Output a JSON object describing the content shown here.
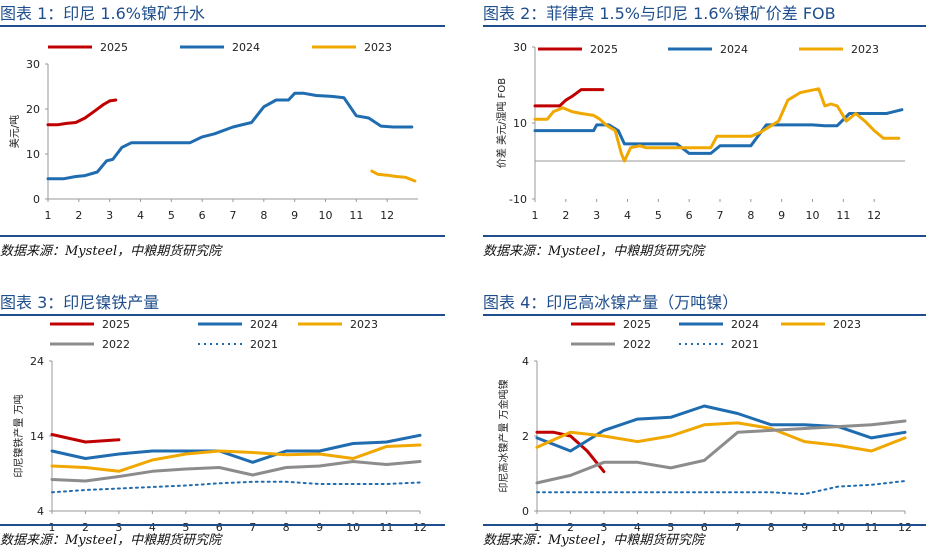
{
  "source_text": "数据来源：Mysteel，中粮期货研究院",
  "panels": [
    {
      "title": "图表 1：印尼 1.6%镍矿升水",
      "source": "数据来源：Mysteel，中粮期货研究院",
      "chart_data": {
        "type": "line",
        "ylabel": "美元/吨",
        "xlabel": "",
        "xlim": [
          1,
          13
        ],
        "ylim": [
          0,
          30
        ],
        "yticks": [
          0,
          10,
          20,
          30
        ],
        "xticks": [
          1,
          2,
          3,
          4,
          5,
          6,
          7,
          8,
          9,
          10,
          11,
          12
        ],
        "legend_position": "top",
        "series": [
          {
            "name": "2025",
            "color": "#c00000",
            "x": [
              1,
              1.3,
              1.6,
              1.9,
              2.2,
              2.5,
              2.8,
              3.0,
              3.2
            ],
            "y": [
              16.5,
              16.5,
              16.8,
              17,
              18,
              19.5,
              21,
              21.8,
              22
            ]
          },
          {
            "name": "2024",
            "color": "#1f6cb0",
            "x": [
              1,
              1.5,
              1.9,
              2.2,
              2.6,
              2.9,
              3.1,
              3.4,
              3.7,
              4.0,
              4.4,
              5.0,
              5.6,
              6.0,
              6.4,
              7.0,
              7.6,
              8.0,
              8.4,
              8.8,
              9.0,
              9.3,
              9.7,
              10.2,
              10.6,
              11.0,
              11.4,
              11.8,
              12.2,
              12.8
            ],
            "y": [
              4.5,
              4.5,
              5,
              5.2,
              6,
              8.5,
              8.8,
              11.5,
              12.5,
              12.5,
              12.5,
              12.5,
              12.5,
              13.8,
              14.5,
              16,
              17,
              20.5,
              22,
              22,
              23.5,
              23.5,
              23,
              22.8,
              22.5,
              18.5,
              18,
              16.2,
              16,
              16
            ]
          },
          {
            "name": "2023",
            "color": "#f0a800",
            "x": [
              11.5,
              11.7,
              12.0,
              12.3,
              12.6,
              12.9
            ],
            "y": [
              6.2,
              5.5,
              5.3,
              5.0,
              4.8,
              4.0
            ]
          }
        ]
      }
    },
    {
      "title": "图表 2：菲律宾 1.5%与印尼 1.6%镍矿价差 FOB",
      "source": "数据来源：Mysteel，中粮期货研究院",
      "chart_data": {
        "type": "line",
        "ylabel": "价差 美元/湿吨 FOB",
        "xlabel": "",
        "xlim": [
          1,
          13
        ],
        "ylim": [
          -10,
          30
        ],
        "yticks": [
          -10,
          10,
          30
        ],
        "xticks": [
          1,
          2,
          3,
          4,
          5,
          6,
          7,
          8,
          9,
          10,
          11,
          12
        ],
        "legend_position": "top",
        "series": [
          {
            "name": "2025",
            "color": "#c00000",
            "x": [
              1,
              1.4,
              1.8,
              2.0,
              2.2,
              2.5,
              2.8,
              3.2
            ],
            "y": [
              14.5,
              14.5,
              14.5,
              16,
              17,
              18.8,
              18.8,
              18.8
            ]
          },
          {
            "name": "2024",
            "color": "#1f6cb0",
            "x": [
              1,
              1.5,
              2.0,
              2.5,
              2.9,
              3.0,
              3.4,
              3.7,
              3.9,
              4.2,
              4.6,
              5.0,
              5.6,
              6.0,
              6.3,
              6.7,
              7.0,
              7.6,
              8.0,
              8.5,
              8.9,
              9.2,
              9.6,
              10.0,
              10.4,
              10.8,
              11.2,
              11.6,
              12.0,
              12.4,
              12.9
            ],
            "y": [
              8,
              8,
              8,
              8,
              8,
              9.5,
              9.5,
              8,
              4.5,
              4.5,
              4.5,
              4.5,
              4.5,
              2,
              2,
              2,
              4,
              4,
              4,
              9.5,
              9.5,
              9.5,
              9.5,
              9.5,
              9.3,
              9.3,
              12.5,
              12.5,
              12.5,
              12.5,
              13.5
            ]
          },
          {
            "name": "2023",
            "color": "#f0a800",
            "x": [
              1,
              1.4,
              1.6,
              1.9,
              2.2,
              2.5,
              2.9,
              3.1,
              3.3,
              3.6,
              3.8,
              3.9,
              4.1,
              4.4,
              4.6,
              4.8,
              5.2,
              5.6,
              6.0,
              6.3,
              6.7,
              6.9,
              7.2,
              7.6,
              8.0,
              8.3,
              8.6,
              8.9,
              9.2,
              9.6,
              9.9,
              10.2,
              10.4,
              10.6,
              10.8,
              11.1,
              11.4,
              11.7,
              12.0,
              12.3,
              12.8
            ],
            "y": [
              11,
              11,
              13,
              14,
              13,
              12.5,
              12,
              11,
              9.5,
              8,
              2,
              0,
              3.5,
              4,
              3.5,
              3.5,
              3.5,
              3.5,
              3.5,
              3.5,
              3.5,
              6.5,
              6.5,
              6.5,
              6.5,
              7.5,
              9,
              10.5,
              16,
              18,
              18.5,
              19,
              14.5,
              15,
              14.5,
              10.5,
              12.5,
              10.5,
              8,
              6,
              6
            ]
          }
        ]
      }
    },
    {
      "title": "图表 3：印尼镍铁产量",
      "source": "数据来源：Mysteel，中粮期货研究院",
      "chart_data": {
        "type": "line",
        "ylabel": "印尼镍铁产量 万吨",
        "xlabel": "",
        "xlim": [
          1,
          12
        ],
        "ylim": [
          4,
          24
        ],
        "yticks": [
          4,
          14,
          24
        ],
        "xticks": [
          1,
          2,
          3,
          4,
          5,
          6,
          7,
          8,
          9,
          10,
          11,
          12
        ],
        "legend_position": "top",
        "series": [
          {
            "name": "2025",
            "color": "#c00000",
            "dash": false,
            "x": [
              1,
              2,
              3
            ],
            "y": [
              14.2,
              13.2,
              13.5
            ]
          },
          {
            "name": "2024",
            "color": "#1f6cb0",
            "dash": false,
            "x": [
              1,
              2,
              3,
              4,
              5,
              6,
              7,
              8,
              9,
              10,
              11,
              12
            ],
            "y": [
              12.0,
              11.0,
              11.6,
              12.0,
              12.0,
              12.0,
              10.5,
              12.0,
              12.0,
              13.0,
              13.2,
              14.1
            ]
          },
          {
            "name": "2023",
            "color": "#f0a800",
            "dash": false,
            "x": [
              1,
              2,
              3,
              4,
              5,
              6,
              7,
              8,
              9,
              10,
              11,
              12
            ],
            "y": [
              10.0,
              9.8,
              9.3,
              10.8,
              11.6,
              12.0,
              11.8,
              11.5,
              11.6,
              11.0,
              12.6,
              12.8
            ]
          },
          {
            "name": "2022",
            "color": "#8c8c8c",
            "dash": false,
            "x": [
              1,
              2,
              3,
              4,
              5,
              6,
              7,
              8,
              9,
              10,
              11,
              12
            ],
            "y": [
              8.2,
              8.0,
              8.6,
              9.3,
              9.6,
              9.8,
              8.8,
              9.8,
              10.0,
              10.6,
              10.2,
              10.6
            ]
          },
          {
            "name": "2021",
            "color": "#1f6cb0",
            "dash": true,
            "x": [
              1,
              2,
              3,
              4,
              5,
              6,
              7,
              8,
              9,
              10,
              11,
              12
            ],
            "y": [
              6.5,
              6.8,
              7.0,
              7.2,
              7.4,
              7.7,
              7.9,
              7.9,
              7.6,
              7.6,
              7.6,
              7.8
            ]
          }
        ]
      }
    },
    {
      "title": "图表 4：印尼高冰镍产量（万吨镍）",
      "source": "数据来源：Mysteel，中粮期货研究院",
      "chart_data": {
        "type": "line",
        "ylabel": "印尼高冰镍产量 万金吨镍",
        "xlabel": "",
        "xlim": [
          1,
          12
        ],
        "ylim": [
          0,
          4
        ],
        "yticks": [
          0,
          2,
          4
        ],
        "xticks": [
          1,
          2,
          3,
          4,
          5,
          6,
          7,
          8,
          9,
          10,
          11,
          12
        ],
        "legend_position": "top",
        "series": [
          {
            "name": "2025",
            "color": "#c00000",
            "dash": false,
            "x": [
              1,
              1.5,
              2,
              2.5,
              3
            ],
            "y": [
              2.1,
              2.1,
              2.0,
              1.6,
              1.05
            ]
          },
          {
            "name": "2024",
            "color": "#1f6cb0",
            "dash": false,
            "x": [
              1,
              2,
              3,
              4,
              5,
              6,
              7,
              8,
              9,
              10,
              11,
              12
            ],
            "y": [
              1.95,
              1.6,
              2.15,
              2.45,
              2.5,
              2.8,
              2.6,
              2.3,
              2.3,
              2.25,
              1.95,
              2.1
            ]
          },
          {
            "name": "2023",
            "color": "#f0a800",
            "dash": false,
            "x": [
              1,
              2,
              3,
              4,
              5,
              6,
              7,
              8,
              9,
              10,
              11,
              12
            ],
            "y": [
              1.7,
              2.1,
              2.0,
              1.85,
              2.0,
              2.3,
              2.35,
              2.2,
              1.85,
              1.75,
              1.6,
              1.95
            ]
          },
          {
            "name": "2022",
            "color": "#8c8c8c",
            "dash": false,
            "x": [
              1,
              2,
              3,
              4,
              5,
              6,
              7,
              8,
              9,
              10,
              11,
              12
            ],
            "y": [
              0.75,
              0.95,
              1.3,
              1.3,
              1.15,
              1.35,
              2.1,
              2.15,
              2.2,
              2.25,
              2.3,
              2.4
            ]
          },
          {
            "name": "2021",
            "color": "#1f6cb0",
            "dash": true,
            "x": [
              1,
              2,
              3,
              4,
              5,
              6,
              7,
              8,
              9,
              10,
              11,
              12
            ],
            "y": [
              0.5,
              0.5,
              0.5,
              0.5,
              0.5,
              0.5,
              0.5,
              0.5,
              0.45,
              0.65,
              0.7,
              0.8
            ]
          }
        ]
      }
    }
  ]
}
